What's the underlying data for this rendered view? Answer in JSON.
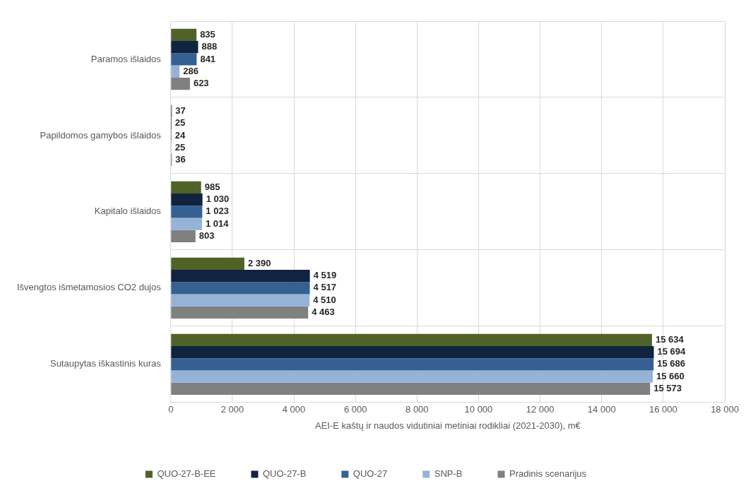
{
  "chart_data": {
    "type": "bar",
    "orientation": "horizontal",
    "xlabel": "AEI-E kaštų ir naudos vidutiniai metiniai rodikliai (2021-2030), m€",
    "categories": [
      "Paramos išlaidos",
      "Papildomos gamybos išlaidos",
      "Kapitalo išlaidos",
      "Išvengtos išmetamosios CO2 dujos",
      "Sutaupytas iškastinis kuras"
    ],
    "series": [
      {
        "name": "QUO-27-B-EE",
        "color": "#4f6228",
        "values": [
          835,
          37,
          985,
          2390,
          15634
        ],
        "value_labels": [
          "835",
          "37",
          "985",
          "2 390",
          "15 634"
        ]
      },
      {
        "name": "QUO-27-B",
        "color": "#10243f",
        "values": [
          888,
          25,
          1030,
          4519,
          15694
        ],
        "value_labels": [
          "888",
          "25",
          "1 030",
          "4 519",
          "15 694"
        ]
      },
      {
        "name": "QUO-27",
        "color": "#366092",
        "values": [
          841,
          24,
          1023,
          4517,
          15686
        ],
        "value_labels": [
          "841",
          "24",
          "1 023",
          "4 517",
          "15 686"
        ]
      },
      {
        "name": "SNP-B",
        "color": "#95b3d7",
        "values": [
          286,
          25,
          1014,
          4510,
          15660
        ],
        "value_labels": [
          "286",
          "25",
          "1 014",
          "4 510",
          "15 660"
        ]
      },
      {
        "name": "Pradinis scenarijus",
        "color": "#808080",
        "values": [
          623,
          36,
          803,
          4463,
          15573
        ],
        "value_labels": [
          "623",
          "36",
          "803",
          "4 463",
          "15 573"
        ]
      }
    ],
    "xlim": [
      0,
      18000
    ],
    "xticks": [
      0,
      {
        "value": 2000,
        "label": "2 000"
      },
      {
        "value": 4000,
        "label": "4 000"
      },
      {
        "value": 6000,
        "label": "6 000"
      },
      {
        "value": 8000,
        "label": "8 000"
      },
      {
        "value": 10000,
        "label": "10 000"
      },
      {
        "value": 12000,
        "label": "12 000"
      },
      {
        "value": 14000,
        "label": "14 000"
      },
      {
        "value": 16000,
        "label": "16 000"
      },
      {
        "value": 18000,
        "label": "18 000"
      }
    ],
    "grid": true,
    "legend": "bottom"
  }
}
